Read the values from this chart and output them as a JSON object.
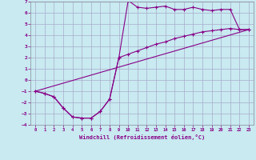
{
  "xlabel": "Windchill (Refroidissement éolien,°C)",
  "background_color": "#c8eaf0",
  "line_color": "#880088",
  "grid_color": "#aaaacc",
  "xlim": [
    -0.5,
    23.5
  ],
  "ylim": [
    -4,
    7
  ],
  "xticks": [
    0,
    1,
    2,
    3,
    4,
    5,
    6,
    7,
    8,
    9,
    10,
    11,
    12,
    13,
    14,
    15,
    16,
    17,
    18,
    19,
    20,
    21,
    22,
    23
  ],
  "yticks": [
    -4,
    -3,
    -2,
    -1,
    0,
    1,
    2,
    3,
    4,
    5,
    6,
    7
  ],
  "curve1_x": [
    0,
    1,
    2,
    3,
    4,
    5,
    6,
    7,
    8,
    9,
    10,
    11,
    12,
    13,
    14,
    15,
    16,
    17,
    18,
    19,
    20,
    21,
    22,
    23
  ],
  "curve1_y": [
    -1.0,
    -1.2,
    -1.5,
    -2.5,
    -3.3,
    -3.4,
    -3.4,
    -2.8,
    -1.7,
    2.0,
    7.1,
    6.5,
    6.4,
    6.5,
    6.6,
    6.3,
    6.3,
    6.5,
    6.3,
    6.2,
    6.3,
    6.3,
    4.5,
    4.5
  ],
  "curve2_x": [
    0,
    1,
    2,
    3,
    4,
    5,
    6,
    7,
    8,
    9,
    10,
    11,
    12,
    13,
    14,
    15,
    16,
    17,
    18,
    19,
    20,
    21,
    22,
    23
  ],
  "curve2_y": [
    -1.0,
    -1.2,
    -1.5,
    -2.5,
    -3.3,
    -3.4,
    -3.4,
    -2.8,
    -1.7,
    2.0,
    2.3,
    2.6,
    2.9,
    3.2,
    3.4,
    3.7,
    3.9,
    4.1,
    4.3,
    4.4,
    4.5,
    4.6,
    4.5,
    4.5
  ],
  "line3_x": [
    0,
    23
  ],
  "line3_y": [
    -1.0,
    4.5
  ]
}
